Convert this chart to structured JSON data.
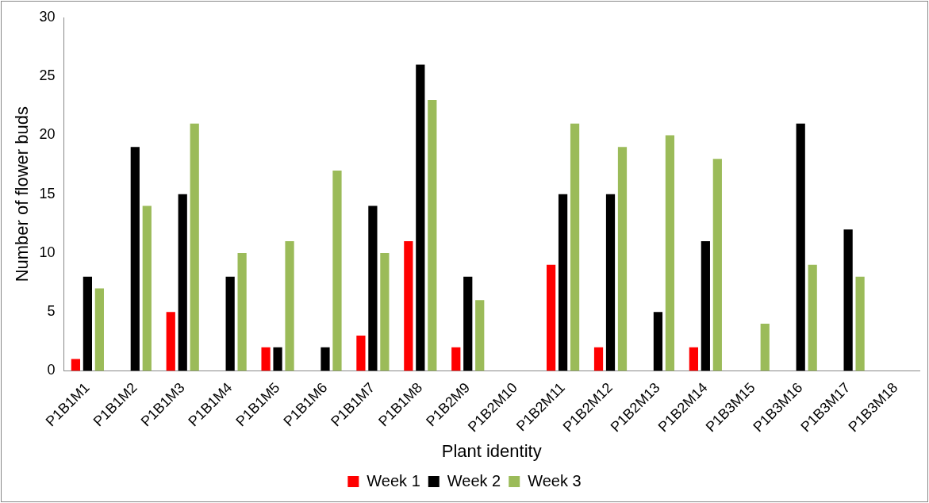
{
  "chart_data": {
    "type": "bar",
    "xlabel": "Plant identity",
    "ylabel": "Number of flower buds",
    "categories": [
      "P1B1M1",
      "P1B1M2",
      "P1B1M3",
      "P1B1M4",
      "P1B1M5",
      "P1B1M6",
      "P1B1M7",
      "P1B1M8",
      "P1B2M9",
      "P1B2M10",
      "P1B2M11",
      "P1B2M12",
      "P1B2M13",
      "P1B2M14",
      "P1B3M15",
      "P1B3M16",
      "P1B3M17",
      "P1B3M18"
    ],
    "series": [
      {
        "name": "Week 1",
        "color": "#ff0000",
        "values": [
          1,
          0,
          5,
          0,
          2,
          0,
          3,
          11,
          2,
          0,
          9,
          2,
          0,
          2,
          0,
          0,
          0,
          0
        ]
      },
      {
        "name": "Week 2",
        "color": "#000000",
        "values": [
          8,
          19,
          15,
          8,
          2,
          2,
          14,
          26,
          8,
          0,
          15,
          15,
          5,
          11,
          0,
          21,
          12,
          0
        ]
      },
      {
        "name": "Week 3",
        "color": "#9bbb59",
        "values": [
          7,
          14,
          21,
          10,
          11,
          17,
          10,
          23,
          6,
          0,
          21,
          19,
          20,
          18,
          4,
          9,
          8,
          0
        ]
      }
    ],
    "ylim": [
      0,
      30
    ],
    "yticks": [
      0,
      5,
      10,
      15,
      20,
      25,
      30
    ],
    "grid": false,
    "legend": "bottom"
  }
}
